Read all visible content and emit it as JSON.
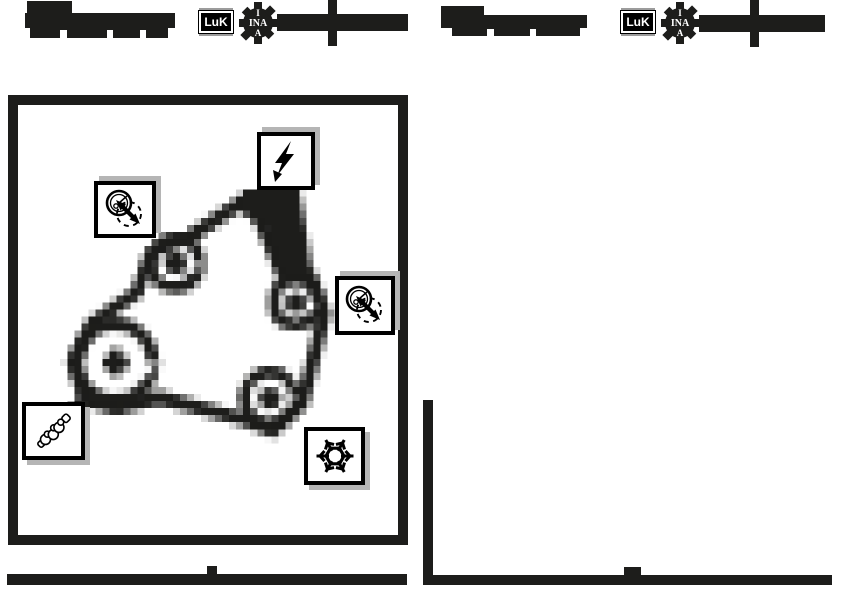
{
  "colors": {
    "ink": "#1d1d1b",
    "logo_gray": "#9c9c9c",
    "shadow_gray": "#b5b5b5",
    "paper": "#ffffff"
  },
  "header_left": {
    "luk_label": "LuK",
    "ina_top": "I",
    "ina_mid": "INA",
    "ina_bottom": "A"
  },
  "header_right": {
    "luk_label": "LuK",
    "ina_top": "I",
    "ina_mid": "INA",
    "ina_bottom": "A"
  },
  "diagram": {
    "icons": {
      "tensioner_left": "belt-tensioner",
      "generator": "generator-lightning",
      "tensioner_right": "belt-tensioner",
      "crankshaft": "crankshaft",
      "compressor": "ac-compressor-snowflake"
    },
    "pulley_count": 4
  }
}
